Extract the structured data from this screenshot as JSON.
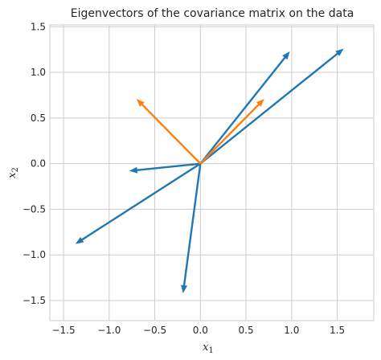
{
  "chart_data": {
    "type": "vector_field",
    "title": "Eigenvectors of the covariance matrix on the data",
    "xlabel": "x",
    "xlabel_sub": "1",
    "ylabel": "x",
    "ylabel_sub": "2",
    "xlim": [
      -1.65,
      1.9
    ],
    "ylim": [
      -1.72,
      1.52
    ],
    "x_ticks": [
      -1.5,
      -1.0,
      -0.5,
      0.0,
      0.5,
      1.0,
      1.5
    ],
    "x_tick_labels": [
      "−1.5",
      "−1.0",
      "−0.5",
      "0.0",
      "0.5",
      "1.0",
      "1.5"
    ],
    "y_ticks": [
      -1.5,
      -1.0,
      -0.5,
      0.0,
      0.5,
      1.0,
      1.5
    ],
    "y_tick_labels": [
      "−1.5",
      "−1.0",
      "−0.5",
      "0.0",
      "0.5",
      "1.0",
      "1.5"
    ],
    "grid": true,
    "origin": [
      0,
      0
    ],
    "series": [
      {
        "color": "#1f77b4",
        "vectors": [
          {
            "x": 0.98,
            "y": 1.23
          },
          {
            "x": 1.57,
            "y": 1.26
          },
          {
            "x": -0.78,
            "y": -0.08
          },
          {
            "x": -1.37,
            "y": -0.88
          },
          {
            "x": -0.19,
            "y": -1.42
          }
        ]
      },
      {
        "color": "#ff7f0e",
        "vectors": [
          {
            "x": 0.7,
            "y": 0.71
          },
          {
            "x": -0.7,
            "y": 0.71
          }
        ]
      }
    ]
  }
}
